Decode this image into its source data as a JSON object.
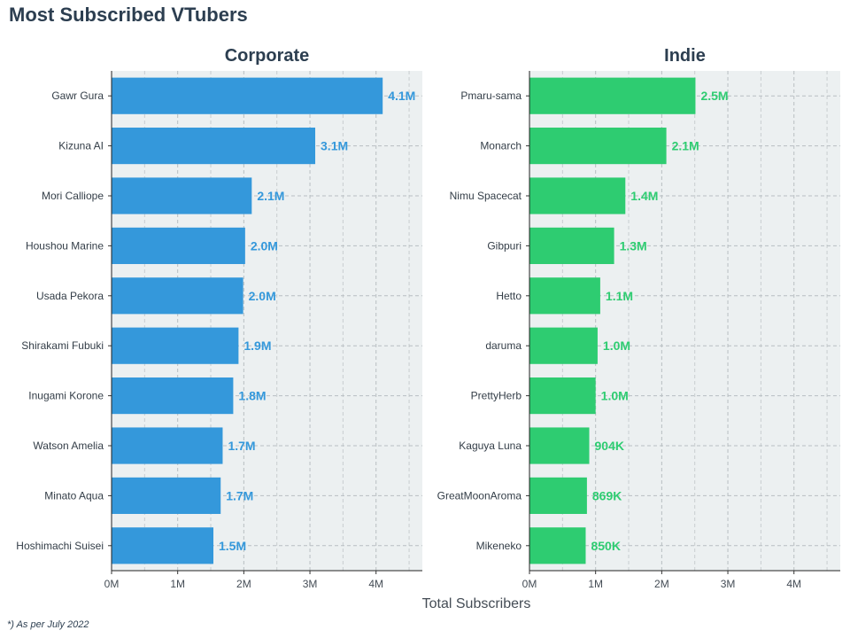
{
  "title": "Most Subscribed VTubers",
  "xlabel": "Total Subscribers",
  "footnote": "*) As per July 2022",
  "chart_data": [
    {
      "type": "bar",
      "orientation": "horizontal",
      "title": "Corporate",
      "color": "#3498db",
      "categories": [
        "Gawr Gura",
        "Kizuna AI",
        "Mori Calliope",
        "Houshou Marine",
        "Usada Pekora",
        "Shirakami Fubuki",
        "Inugami Korone",
        "Watson Amelia",
        "Minato Aqua",
        "Hoshimachi Suisei"
      ],
      "values": [
        4100000,
        3080000,
        2120000,
        2020000,
        1990000,
        1920000,
        1840000,
        1680000,
        1650000,
        1540000
      ],
      "value_labels": [
        "4.1M",
        "3.1M",
        "2.1M",
        "2.0M",
        "2.0M",
        "1.9M",
        "1.8M",
        "1.7M",
        "1.7M",
        "1.5M"
      ],
      "xlim": [
        0,
        4700000
      ],
      "xticks": [
        0,
        1000000,
        2000000,
        3000000,
        4000000
      ],
      "xtick_labels": [
        "0M",
        "1M",
        "2M",
        "3M",
        "4M"
      ],
      "grid": true
    },
    {
      "type": "bar",
      "orientation": "horizontal",
      "title": "Indie",
      "color": "#2ecc71",
      "categories": [
        "Pmaru-sama",
        "Monarch",
        "Nimu Spacecat",
        "Gibpuri",
        "Hetto",
        "daruma",
        "PrettyHerb",
        "Kaguya Luna",
        "GreatMoonAroma",
        "Mikeneko"
      ],
      "values": [
        2510000,
        2070000,
        1450000,
        1280000,
        1070000,
        1030000,
        1000000,
        904000,
        869000,
        850000
      ],
      "value_labels": [
        "2.5M",
        "2.1M",
        "1.4M",
        "1.3M",
        "1.1M",
        "1.0M",
        "1.0M",
        "904K",
        "869K",
        "850K"
      ],
      "xlim": [
        0,
        4700000
      ],
      "xticks": [
        0,
        1000000,
        2000000,
        3000000,
        4000000
      ],
      "xtick_labels": [
        "0M",
        "1M",
        "2M",
        "3M",
        "4M"
      ],
      "grid": true
    }
  ]
}
